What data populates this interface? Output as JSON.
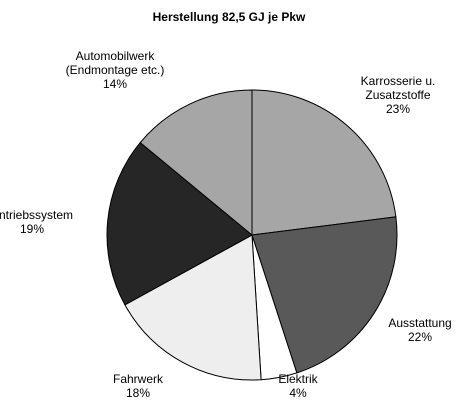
{
  "chart_data": {
    "type": "pie",
    "title": "Herstellung 82,5 GJ je Pkw",
    "categories": [
      "Karrosserie u.\nZusatzstoffe",
      "Ausstattung",
      "Elektrik",
      "Fahrwerk",
      "Antriebssystem",
      "Automobilwerk\n(Endmontage etc.)"
    ],
    "values": [
      23,
      22,
      4,
      18,
      19,
      14
    ],
    "value_labels": [
      "23%",
      "22%",
      "4%",
      "18%",
      "19%",
      "14%"
    ],
    "colors": [
      "#a6a6a6",
      "#595959",
      "#ffffff",
      "#eeeeee",
      "#262626",
      "#a6a6a6"
    ]
  }
}
